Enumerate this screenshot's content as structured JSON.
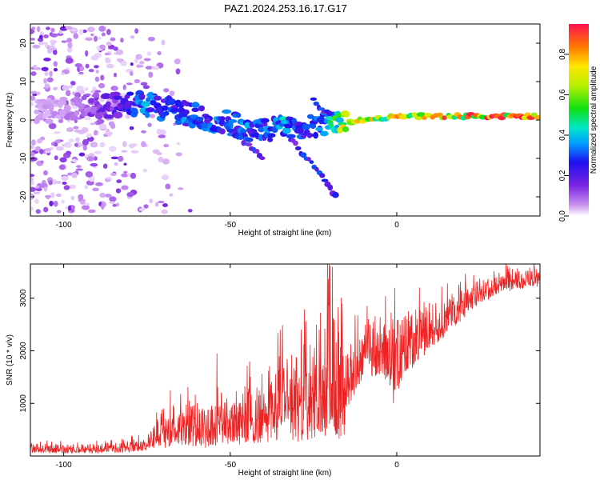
{
  "chart_data": [
    {
      "type": "heatmap",
      "title": "PAZ1.2024.253.16.17.G17",
      "xlabel": "Height of straight line (km)",
      "ylabel": "Frequency (Hz)",
      "xlim": [
        -110,
        43
      ],
      "ylim": [
        -25,
        25
      ],
      "xticks": [
        -100,
        -50,
        0
      ],
      "yticks": [
        -20,
        -10,
        0,
        10,
        20
      ],
      "colorbar": {
        "label": "Normalized spectral amplitude",
        "range": [
          0,
          0.95
        ],
        "ticks": [
          0.0,
          0.2,
          0.4,
          0.6,
          0.8
        ],
        "colormap": "rainbow"
      },
      "ridge": {
        "x": [
          -104,
          -95,
          -85,
          -80,
          -75,
          -70,
          -65,
          -60,
          -55,
          -50,
          -45,
          -40,
          -35,
          -30,
          -25,
          -20,
          -15,
          -10,
          -5,
          0,
          10,
          20,
          30,
          43
        ],
        "frequency": [
          2,
          3,
          4,
          4,
          4,
          3,
          2,
          1,
          0,
          -1,
          -2,
          -3,
          -2,
          -1.5,
          -1,
          -1,
          -0.5,
          0,
          0.5,
          1,
          1,
          1,
          1,
          1
        ],
        "amplitude": [
          0.05,
          0.1,
          0.2,
          0.3,
          0.35,
          0.3,
          0.35,
          0.3,
          0.35,
          0.3,
          0.35,
          0.3,
          0.4,
          0.35,
          0.3,
          0.45,
          0.75,
          0.8,
          0.7,
          0.75,
          0.85,
          0.85,
          0.9,
          0.8
        ]
      },
      "branches": [
        {
          "x": [
            -50,
            -45,
            -40
          ],
          "frequency": [
            -3,
            -6,
            -10
          ]
        },
        {
          "x": [
            -32,
            -25,
            -18
          ],
          "frequency": [
            -5,
            -12,
            -20
          ]
        },
        {
          "x": [
            -25,
            -20
          ],
          "frequency": [
            5,
            1
          ]
        }
      ]
    },
    {
      "type": "line",
      "title": "",
      "xlabel": "Height of straight line (km)",
      "ylabel": "SNR (10 * v/v)",
      "xlim": [
        -110,
        43
      ],
      "ylim": [
        0,
        3650
      ],
      "xticks": [
        -100,
        -50,
        0
      ],
      "yticks": [
        1000,
        2000,
        3000
      ],
      "color": "#ee2222",
      "envelope": {
        "x": [
          -110,
          -100,
          -90,
          -80,
          -75,
          -70,
          -65,
          -60,
          -55,
          -50,
          -45,
          -40,
          -35,
          -30,
          -25,
          -22,
          -20,
          -18,
          -16,
          -14,
          -12,
          -10,
          -5,
          0,
          5,
          10,
          15,
          20,
          25,
          30,
          35,
          40,
          43
        ],
        "low": [
          50,
          50,
          50,
          60,
          100,
          150,
          200,
          150,
          150,
          200,
          200,
          200,
          200,
          250,
          300,
          300,
          300,
          300,
          300,
          1000,
          1250,
          1400,
          1500,
          1200,
          1700,
          2000,
          2300,
          2600,
          2900,
          3050,
          3150,
          3200,
          3200
        ],
        "high": [
          250,
          250,
          250,
          300,
          400,
          900,
          1200,
          1000,
          1100,
          1200,
          1400,
          1500,
          1900,
          2000,
          2300,
          2600,
          3600,
          2500,
          2300,
          2100,
          2400,
          2600,
          2750,
          2700,
          2800,
          2950,
          3100,
          3250,
          3350,
          3450,
          3550,
          3600,
          3600
        ]
      },
      "spikes": [
        {
          "x": -68,
          "y": 1250
        },
        {
          "x": -54,
          "y": 1950
        },
        {
          "x": -35,
          "y": 2400
        },
        {
          "x": -20,
          "y": 3620
        },
        {
          "x": -1,
          "y": 1000
        }
      ]
    }
  ]
}
